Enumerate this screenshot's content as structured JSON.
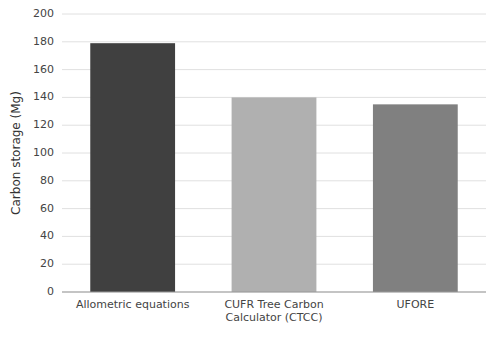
{
  "chart_data": {
    "type": "bar",
    "categories": [
      "Allometric equations",
      "CUFR Tree Carbon\nCalculator (CTCC)",
      "UFORE"
    ],
    "values": [
      179,
      140,
      135
    ],
    "colors": [
      "#404040",
      "#b0b0b0",
      "#808080"
    ],
    "ylabel": "Carbon storage (Mg)",
    "ylim": [
      0,
      200
    ],
    "yticks": [
      0,
      20,
      40,
      60,
      80,
      100,
      120,
      140,
      160,
      180,
      200
    ],
    "grid": true
  }
}
